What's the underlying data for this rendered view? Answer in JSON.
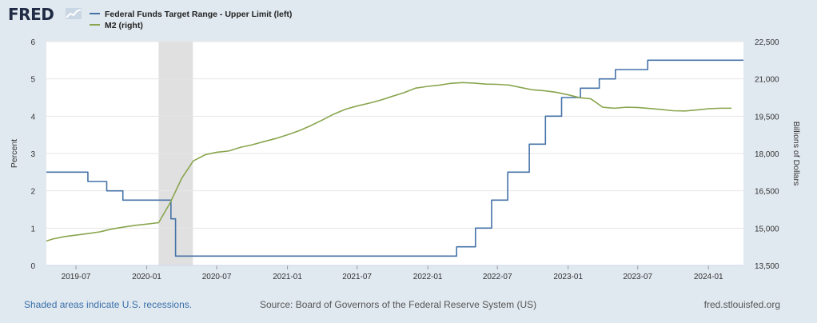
{
  "brand": {
    "logo_text": "FRED",
    "logo_icon": "chart-line-icon"
  },
  "legend": [
    {
      "label": "Federal Funds Target Range - Upper Limit (left)",
      "color": "#4572a7"
    },
    {
      "label": "M2 (right)",
      "color": "#89a54e"
    }
  ],
  "footer": {
    "recession_note": "Shaded areas indicate U.S. recessions.",
    "source": "Source: Board of Governors of the Federal Reserve System (US)",
    "site": "fred.stlouisfed.org"
  },
  "chart_data": {
    "type": "line",
    "title": "",
    "ylabel_left": "Percent",
    "ylabel_right": "Billions of Dollars",
    "xlim": [
      "2019-04-15",
      "2024-04-01"
    ],
    "ylim_left": [
      0,
      6
    ],
    "ylim_right": [
      13500,
      22500
    ],
    "yticks_left": [
      0,
      1,
      2,
      3,
      4,
      5,
      6
    ],
    "yticks_right": [
      13500,
      15000,
      16500,
      18000,
      19500,
      21000,
      22500
    ],
    "yticks_right_labels": [
      "13,500",
      "15,000",
      "16,500",
      "18,000",
      "19,500",
      "21,000",
      "22,500"
    ],
    "xticks": [
      "2019-07-01",
      "2020-01-01",
      "2020-07-01",
      "2021-01-01",
      "2021-07-01",
      "2022-01-01",
      "2022-07-01",
      "2023-01-01",
      "2023-07-01",
      "2024-01-01"
    ],
    "xtick_labels": [
      "2019-07",
      "2020-01",
      "2020-07",
      "2021-01",
      "2021-07",
      "2022-01",
      "2022-07",
      "2023-01",
      "2023-07",
      "2024-01"
    ],
    "grid": true,
    "recessions": [
      {
        "start": "2020-02-01",
        "end": "2020-04-30"
      }
    ],
    "series": [
      {
        "name": "Federal Funds Target Range - Upper Limit (left)",
        "axis": "left",
        "color": "#4572a7",
        "step": true,
        "points": [
          [
            "2019-04-15",
            2.5
          ],
          [
            "2019-08-01",
            2.25
          ],
          [
            "2019-09-19",
            2.0
          ],
          [
            "2019-10-31",
            1.75
          ],
          [
            "2020-03-04",
            1.25
          ],
          [
            "2020-03-16",
            0.25
          ],
          [
            "2022-03-17",
            0.5
          ],
          [
            "2022-05-05",
            1.0
          ],
          [
            "2022-06-16",
            1.75
          ],
          [
            "2022-07-28",
            2.5
          ],
          [
            "2022-09-22",
            3.25
          ],
          [
            "2022-11-03",
            4.0
          ],
          [
            "2022-12-15",
            4.5
          ],
          [
            "2023-02-02",
            4.75
          ],
          [
            "2023-03-23",
            5.0
          ],
          [
            "2023-05-04",
            5.25
          ],
          [
            "2023-07-27",
            5.5
          ],
          [
            "2024-04-01",
            5.5
          ]
        ]
      },
      {
        "name": "M2 (right)",
        "axis": "right",
        "color": "#89a54e",
        "step": false,
        "points": [
          [
            "2019-04-01",
            14480
          ],
          [
            "2019-05-01",
            14560
          ],
          [
            "2019-06-01",
            14660
          ],
          [
            "2019-07-01",
            14720
          ],
          [
            "2019-08-01",
            14780
          ],
          [
            "2019-09-01",
            14850
          ],
          [
            "2019-10-01",
            14960
          ],
          [
            "2019-11-01",
            15040
          ],
          [
            "2019-12-01",
            15110
          ],
          [
            "2020-01-01",
            15160
          ],
          [
            "2020-02-01",
            15220
          ],
          [
            "2020-03-01",
            15990
          ],
          [
            "2020-04-01",
            17000
          ],
          [
            "2020-05-01",
            17700
          ],
          [
            "2020-06-01",
            17950
          ],
          [
            "2020-07-01",
            18050
          ],
          [
            "2020-08-01",
            18100
          ],
          [
            "2020-09-01",
            18250
          ],
          [
            "2020-10-01",
            18350
          ],
          [
            "2020-11-01",
            18480
          ],
          [
            "2020-12-01",
            18600
          ],
          [
            "2021-01-01",
            18750
          ],
          [
            "2021-02-01",
            18920
          ],
          [
            "2021-03-01",
            19110
          ],
          [
            "2021-04-01",
            19340
          ],
          [
            "2021-05-01",
            19580
          ],
          [
            "2021-06-01",
            19780
          ],
          [
            "2021-07-01",
            19910
          ],
          [
            "2021-08-01",
            20020
          ],
          [
            "2021-09-01",
            20150
          ],
          [
            "2021-10-01",
            20300
          ],
          [
            "2021-11-01",
            20450
          ],
          [
            "2021-12-01",
            20630
          ],
          [
            "2022-01-01",
            20700
          ],
          [
            "2022-02-01",
            20750
          ],
          [
            "2022-03-01",
            20820
          ],
          [
            "2022-04-01",
            20850
          ],
          [
            "2022-05-01",
            20830
          ],
          [
            "2022-06-01",
            20790
          ],
          [
            "2022-07-01",
            20780
          ],
          [
            "2022-08-01",
            20750
          ],
          [
            "2022-09-01",
            20650
          ],
          [
            "2022-10-01",
            20560
          ],
          [
            "2022-11-01",
            20520
          ],
          [
            "2022-12-01",
            20460
          ],
          [
            "2023-01-01",
            20360
          ],
          [
            "2023-02-01",
            20240
          ],
          [
            "2023-03-01",
            20200
          ],
          [
            "2023-04-01",
            19860
          ],
          [
            "2023-05-01",
            19820
          ],
          [
            "2023-06-01",
            19860
          ],
          [
            "2023-07-01",
            19850
          ],
          [
            "2023-08-01",
            19810
          ],
          [
            "2023-09-01",
            19770
          ],
          [
            "2023-10-01",
            19720
          ],
          [
            "2023-11-01",
            19710
          ],
          [
            "2023-12-01",
            19750
          ],
          [
            "2024-01-01",
            19800
          ],
          [
            "2024-02-01",
            19820
          ],
          [
            "2024-03-01",
            19820
          ]
        ]
      }
    ]
  }
}
